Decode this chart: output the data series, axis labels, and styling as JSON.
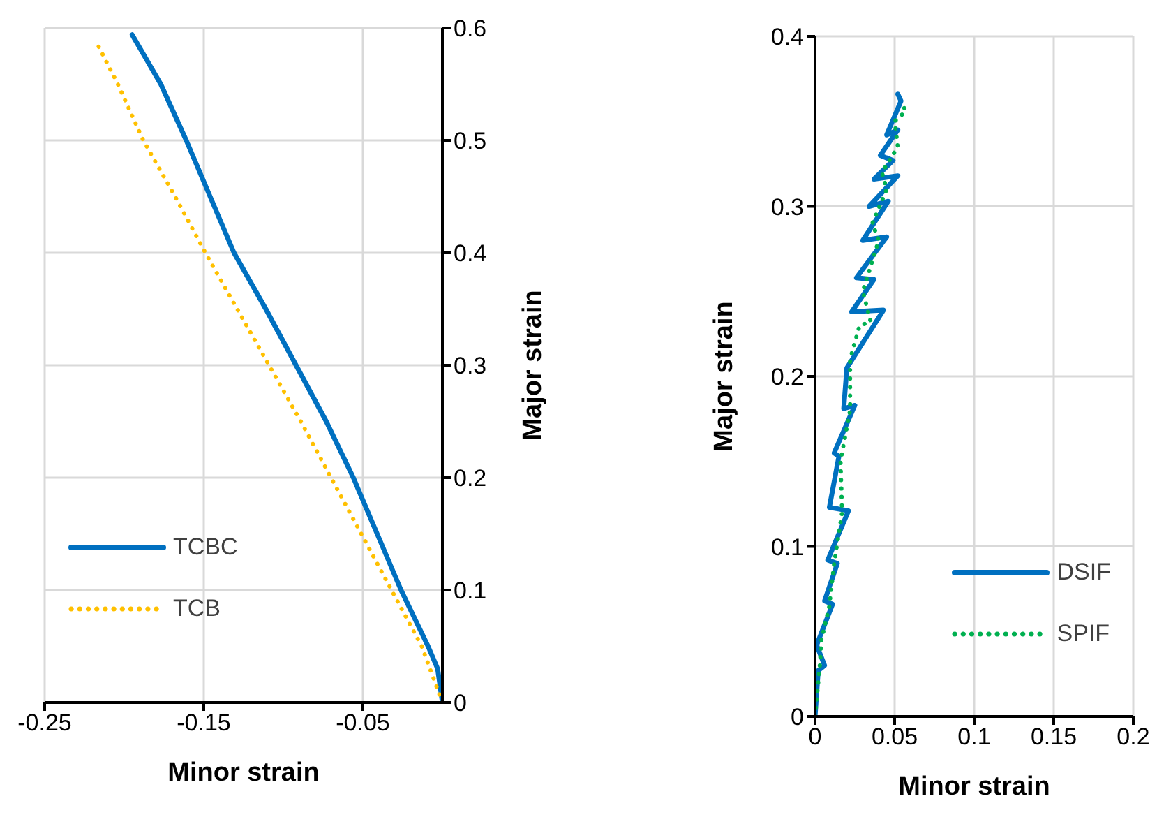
{
  "chart_data": [
    {
      "type": "line",
      "xlabel": "Minor strain",
      "ylabel": "Major strain",
      "xlim": [
        -0.25,
        0
      ],
      "ylim": [
        0,
        0.6
      ],
      "xticks": [
        -0.25,
        -0.15,
        -0.05
      ],
      "yticks": [
        0,
        0.1,
        0.2,
        0.3,
        0.4,
        0.5,
        0.6
      ],
      "grid": true,
      "legend": "bottom left",
      "series": [
        {
          "name": "TCBC",
          "color": "#0070c0",
          "line_style": "solid",
          "x": [
            0,
            -0.003,
            -0.009,
            -0.026,
            -0.041,
            -0.056,
            -0.073,
            -0.092,
            -0.111,
            -0.131,
            -0.146,
            -0.161,
            -0.177,
            -0.195
          ],
          "values": [
            0,
            0.03,
            0.05,
            0.1,
            0.15,
            0.2,
            0.25,
            0.3,
            0.35,
            0.4,
            0.45,
            0.5,
            0.55,
            0.594
          ]
        },
        {
          "name": "TCB",
          "color": "#ffc000",
          "line_style": "dotted",
          "x": [
            0,
            -0.013,
            -0.032,
            -0.051,
            -0.07,
            -0.089,
            -0.109,
            -0.129,
            -0.149,
            -0.168,
            -0.188,
            -0.204,
            -0.217
          ],
          "values": [
            0,
            0.05,
            0.1,
            0.15,
            0.2,
            0.25,
            0.3,
            0.35,
            0.4,
            0.45,
            0.5,
            0.55,
            0.586
          ]
        }
      ]
    },
    {
      "type": "line",
      "xlabel": "Minor strain",
      "ylabel": "Major strain",
      "xlim": [
        0,
        0.2
      ],
      "ylim": [
        0,
        0.4
      ],
      "xticks": [
        0,
        0.05,
        0.1,
        0.15,
        0.2
      ],
      "yticks": [
        0,
        0.1,
        0.2,
        0.3,
        0.4
      ],
      "grid": true,
      "legend": "bottom right",
      "series": [
        {
          "name": "DSIF",
          "color": "#0070c0",
          "line_style": "solid",
          "x": [
            0,
            0.002,
            0.006,
            0.001,
            0.011,
            0.006,
            0.014,
            0.008,
            0.021,
            0.009,
            0.015,
            0.012,
            0.025,
            0.018,
            0.02,
            0.043,
            0.023,
            0.037,
            0.026,
            0.045,
            0.03,
            0.046,
            0.034,
            0.052,
            0.037,
            0.049,
            0.041,
            0.052,
            0.045,
            0.054,
            0.052
          ],
          "values": [
            0,
            0.027,
            0.03,
            0.042,
            0.066,
            0.068,
            0.09,
            0.092,
            0.121,
            0.123,
            0.153,
            0.155,
            0.183,
            0.181,
            0.205,
            0.239,
            0.238,
            0.257,
            0.258,
            0.282,
            0.28,
            0.303,
            0.3,
            0.318,
            0.316,
            0.327,
            0.33,
            0.345,
            0.342,
            0.362,
            0.366
          ]
        },
        {
          "name": "SPIF",
          "color": "#00b050",
          "line_style": "dotted",
          "x": [
            0,
            0.003,
            0.004,
            0.009,
            0.012,
            0.017,
            0.016,
            0.022,
            0.022,
            0.028,
            0.035,
            0.03,
            0.04,
            0.036,
            0.045,
            0.042,
            0.052,
            0.05,
            0.057,
            0.055
          ],
          "values": [
            0,
            0.03,
            0.045,
            0.065,
            0.09,
            0.12,
            0.15,
            0.18,
            0.21,
            0.23,
            0.232,
            0.25,
            0.28,
            0.29,
            0.31,
            0.32,
            0.335,
            0.35,
            0.356,
            0.36
          ]
        }
      ]
    }
  ]
}
